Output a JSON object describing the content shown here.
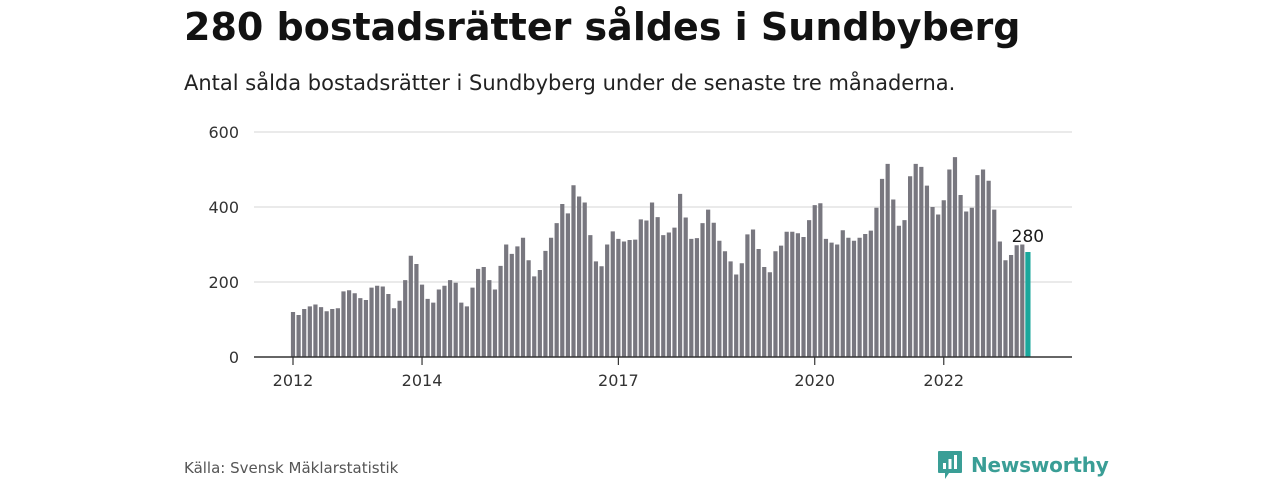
{
  "header": {
    "title": "280 bostadsrätter såldes i Sundbyberg",
    "subtitle": "Antal sålda bostadsrätter i Sundbyberg under de senaste tre månaderna."
  },
  "footer": {
    "source": "Källa: Svensk Mäklarstatistik",
    "brand": "Newsworthy"
  },
  "colors": {
    "bar": "#78777f",
    "highlight": "#1aa79c",
    "grid": "#d6d6d6",
    "axis": "#333333",
    "brand": "#3a9e96"
  },
  "chart_data": {
    "type": "bar",
    "title": "",
    "xlabel": "",
    "ylabel": "",
    "ylim": [
      0,
      600
    ],
    "yticks": [
      0,
      200,
      400,
      600
    ],
    "xticks": [
      {
        "label": "2012",
        "index": 0
      },
      {
        "label": "2014",
        "index": 23
      },
      {
        "label": "2017",
        "index": 58
      },
      {
        "label": "2020",
        "index": 93
      },
      {
        "label": "2022",
        "index": 116
      }
    ],
    "grid": true,
    "highlight_label": "280",
    "series": [
      {
        "values": [
          120,
          112,
          128,
          135,
          140,
          133,
          122,
          128,
          130,
          175,
          178,
          170,
          157,
          152,
          185,
          190,
          188,
          168,
          130,
          150,
          205,
          270,
          248,
          193,
          155,
          145,
          180,
          190,
          205,
          198,
          145,
          135,
          185,
          235,
          240,
          205,
          180,
          243,
          300,
          275,
          295,
          318,
          258,
          215,
          232,
          283,
          318,
          357,
          408,
          383,
          458,
          428,
          412,
          325,
          255,
          242,
          300,
          335,
          315,
          308,
          312,
          313,
          367,
          364,
          412,
          373,
          325,
          332,
          345,
          435,
          372,
          315,
          317,
          357,
          393,
          358,
          310,
          282,
          255,
          220,
          250,
          327,
          340,
          288,
          240,
          226,
          282,
          297,
          334,
          334,
          330,
          320,
          365,
          405,
          410,
          315,
          305,
          300,
          338,
          318,
          310,
          318,
          328,
          337,
          398,
          475,
          515,
          420,
          350,
          365,
          482,
          515,
          507,
          457,
          400,
          380,
          418,
          500,
          533,
          432,
          388,
          398,
          485,
          500,
          470,
          393,
          308,
          258,
          272,
          298,
          300,
          280
        ]
      }
    ]
  }
}
